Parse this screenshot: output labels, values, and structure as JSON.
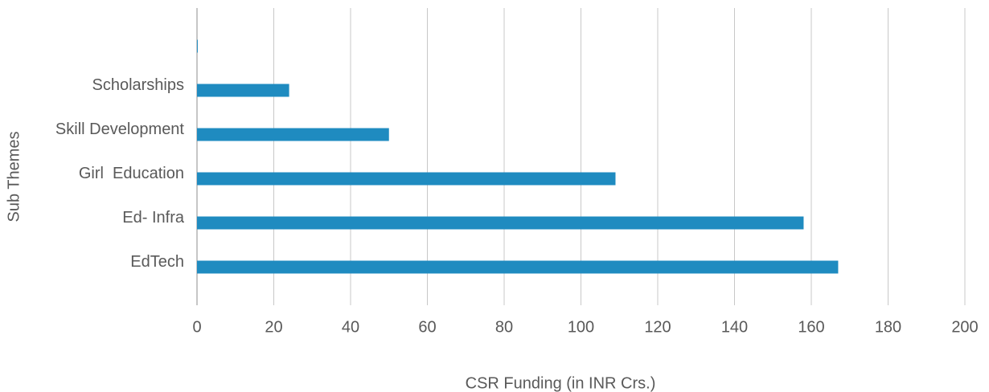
{
  "chart_data": {
    "type": "bar",
    "orientation": "horizontal",
    "xlabel": "CSR Funding (in INR Crs.)",
    "ylabel": "Sub Themes",
    "categories": [
      null,
      "Scholarships",
      "Skill Development",
      "Girl  Education",
      "Ed- Infra",
      "EdTech"
    ],
    "values": [
      0.2,
      24,
      50,
      109,
      158,
      167
    ],
    "color": "#1f8bc0",
    "xlim": [
      0,
      200
    ],
    "xticks": [
      0,
      20,
      40,
      60,
      80,
      100,
      120,
      140,
      160,
      180,
      200
    ],
    "grid": true
  }
}
